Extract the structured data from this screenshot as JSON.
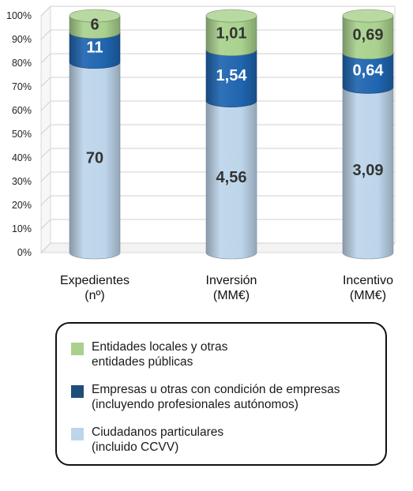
{
  "chart_data": {
    "type": "bar",
    "stacked": true,
    "normalized_100pct": true,
    "categories": [
      {
        "line1": "Expedientes",
        "line2": "(nº)"
      },
      {
        "line1": "Inversión",
        "line2": "(MM€)"
      },
      {
        "line1": "Incentivo",
        "line2": "(MM€)"
      }
    ],
    "series": [
      {
        "name": "Ciudadanos particulares\n(incluido CCVV)",
        "color": "#bdd5ea",
        "labels": [
          "70",
          "4,56",
          "3,09"
        ],
        "label_color": "#333333",
        "values": [
          70,
          4.56,
          3.09
        ]
      },
      {
        "name": "Empresas u otras con condición de empresas\n(incluyendo profesionales autónomos)",
        "color": "#1f65b0",
        "labels": [
          "11",
          "1,54",
          "0,64"
        ],
        "label_color": "#ffffff",
        "values": [
          11,
          1.54,
          0.64
        ]
      },
      {
        "name": "Entidades locales y otras\nentidades públicas",
        "color": "#a9d18e",
        "labels": [
          "6",
          "1,01",
          "0,69"
        ],
        "label_color": "#333333",
        "values": [
          6,
          1.01,
          0.69
        ]
      }
    ],
    "ylim": [
      0,
      100
    ],
    "yticks": [
      "0%",
      "10%",
      "20%",
      "30%",
      "40%",
      "50%",
      "60%",
      "70%",
      "80%",
      "90%",
      "100%"
    ],
    "grid": true,
    "legend_position": "bottom"
  }
}
